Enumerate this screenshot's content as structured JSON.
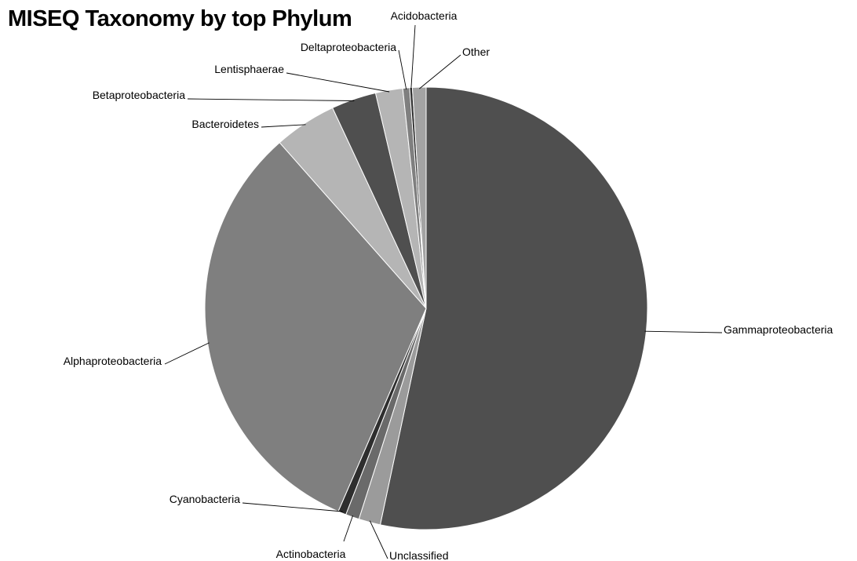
{
  "chart_data": {
    "type": "pie",
    "title": "MISEQ Taxonomy by top Phylum",
    "start_angle_deg": 0,
    "direction": "clockwise",
    "slices": [
      {
        "name": "Gammaproteobacteria",
        "value": 53.7,
        "color": "#4f4f4f"
      },
      {
        "name": "Unclassified",
        "value": 1.6,
        "color": "#9b9b9b"
      },
      {
        "name": "Actinobacteria",
        "value": 1.0,
        "color": "#6a6a6a"
      },
      {
        "name": "Cyanobacteria",
        "value": 0.6,
        "color": "#2e2e2e"
      },
      {
        "name": "Alphaproteobacteria",
        "value": 32.2,
        "color": "#7f7f7f"
      },
      {
        "name": "Bacteroidetes",
        "value": 4.6,
        "color": "#b5b5b5"
      },
      {
        "name": "Betaproteobacteria",
        "value": 3.3,
        "color": "#4f4f4f"
      },
      {
        "name": "Lentisphaerae",
        "value": 2.0,
        "color": "#b5b5b5"
      },
      {
        "name": "Deltaproteobacteria",
        "value": 0.5,
        "color": "#7f7f7f"
      },
      {
        "name": "Acidobacteria",
        "value": 0.2,
        "color": "#2e2e2e"
      },
      {
        "name": "Other",
        "value": 1.0,
        "color": "#a3a3a3"
      }
    ]
  }
}
